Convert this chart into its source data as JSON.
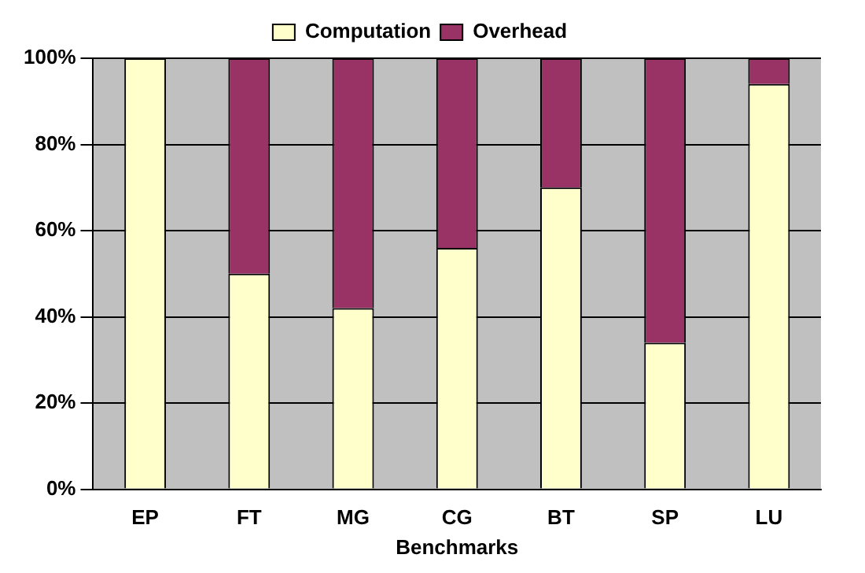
{
  "chart_data": {
    "type": "bar",
    "stacked": true,
    "xlabel": "Benchmarks",
    "categories": [
      "EP",
      "FT",
      "MG",
      "CG",
      "BT",
      "SP",
      "LU"
    ],
    "series": [
      {
        "name": "Computation",
        "color": "#ffffcc",
        "values": [
          100,
          50,
          42,
          56,
          70,
          34,
          94
        ]
      },
      {
        "name": "Overhead",
        "color": "#993366",
        "values": [
          0,
          50,
          58,
          44,
          30,
          66,
          6
        ]
      }
    ],
    "ylim": [
      0,
      100
    ],
    "yticks": [
      {
        "value": 0,
        "label": "0%"
      },
      {
        "value": 20,
        "label": "20%"
      },
      {
        "value": 40,
        "label": "40%"
      },
      {
        "value": 60,
        "label": "60%"
      },
      {
        "value": 80,
        "label": "80%"
      },
      {
        "value": 100,
        "label": "100%"
      }
    ],
    "grid": "y",
    "legend": "top"
  }
}
